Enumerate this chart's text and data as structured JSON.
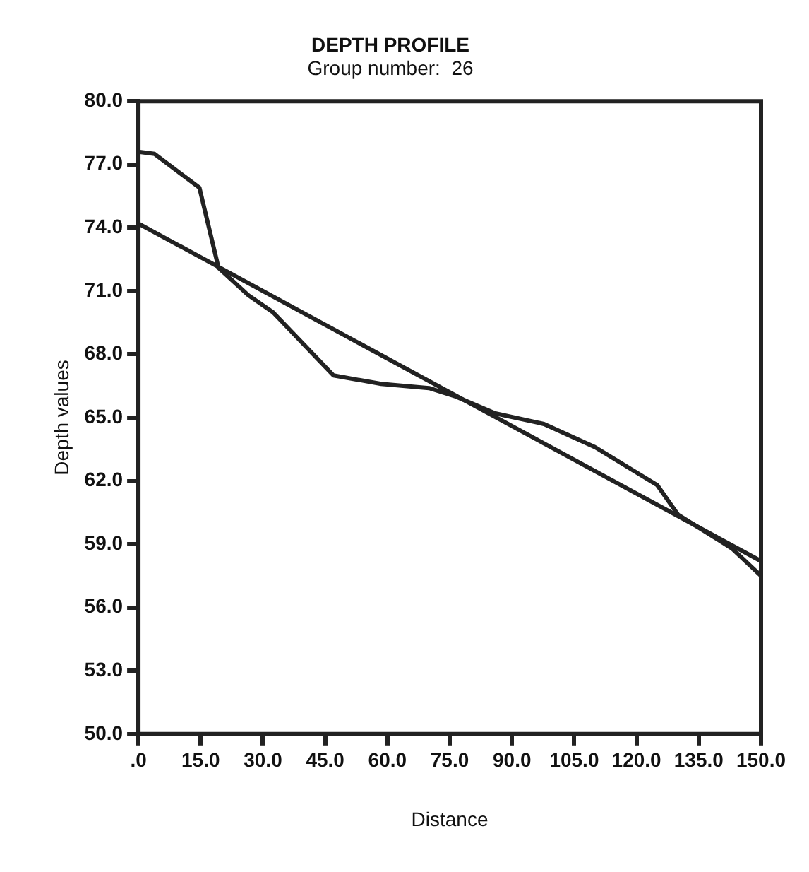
{
  "chart_data": {
    "type": "line",
    "title": "DEPTH PROFILE",
    "subtitle": "Group number:  26",
    "xlabel": "Distance",
    "ylabel": "Depth values",
    "series": [
      {
        "color": "#222222",
        "x": [
          0,
          3.9,
          14.7,
          19.3,
          26.5,
          32.4,
          47,
          58.5,
          70,
          76.5,
          86,
          97.7,
          110,
          125,
          130,
          143,
          150
        ],
        "values": [
          77.6,
          77.5,
          75.9,
          72.1,
          70.8,
          70.0,
          67.0,
          66.6,
          66.4,
          66.0,
          65.2,
          64.7,
          63.6,
          61.8,
          60.4,
          58.8,
          57.5
        ]
      },
      {
        "color": "#222222",
        "x": [
          0,
          150
        ],
        "values": [
          74.2,
          58.2
        ]
      }
    ],
    "xlim": [
      0,
      150
    ],
    "xticks": [
      {
        "value": 0,
        "label": ".0"
      },
      {
        "value": 15,
        "label": "15.0"
      },
      {
        "value": 30,
        "label": "30.0"
      },
      {
        "value": 45,
        "label": "45.0"
      },
      {
        "value": 60,
        "label": "60.0"
      },
      {
        "value": 75,
        "label": "75.0"
      },
      {
        "value": 90,
        "label": "90.0"
      },
      {
        "value": 105,
        "label": "105.0"
      },
      {
        "value": 120,
        "label": "120.0"
      },
      {
        "value": 135,
        "label": "135.0"
      },
      {
        "value": 150,
        "label": "150.0"
      }
    ],
    "ylim": [
      50,
      80
    ],
    "yticks": [
      {
        "value": 50,
        "label": "50.0"
      },
      {
        "value": 53,
        "label": "53.0"
      },
      {
        "value": 56,
        "label": "56.0"
      },
      {
        "value": 59,
        "label": "59.0"
      },
      {
        "value": 62,
        "label": "62.0"
      },
      {
        "value": 65,
        "label": "65.0"
      },
      {
        "value": 68,
        "label": "68.0"
      },
      {
        "value": 71,
        "label": "71.0"
      },
      {
        "value": 74,
        "label": "74.0"
      },
      {
        "value": 77,
        "label": "77.0"
      },
      {
        "value": 80,
        "label": "80.0"
      }
    ],
    "grid": false,
    "legend": false,
    "marker": "none",
    "line_style": "solid"
  }
}
